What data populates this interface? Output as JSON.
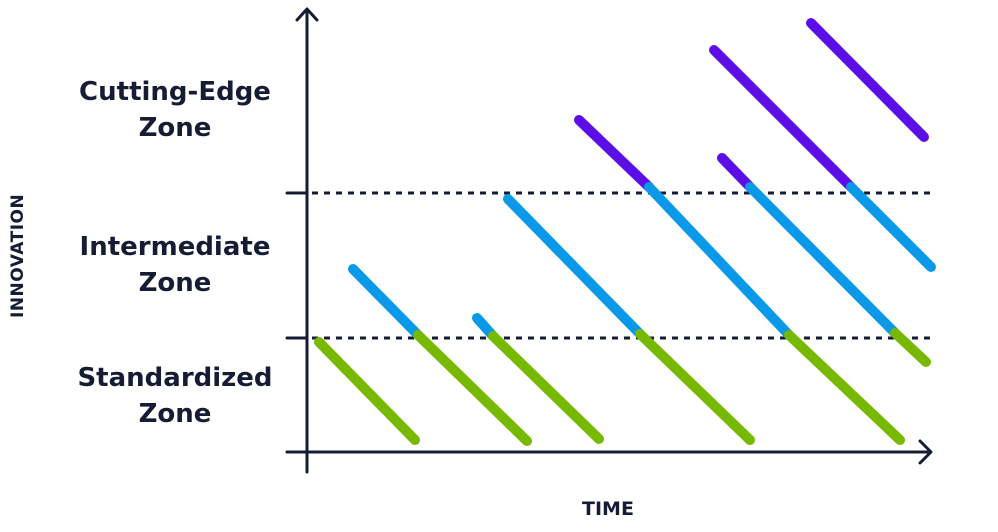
{
  "zones": [
    {
      "line1": "Cutting-Edge",
      "line2": "Zone"
    },
    {
      "line1": "Intermediate",
      "line2": "Zone"
    },
    {
      "line1": "Standardized",
      "line2": "Zone"
    }
  ],
  "axes": {
    "y_label": "INNOVATION",
    "x_label": "TIME"
  },
  "colors": {
    "standardized": "#76b900",
    "intermediate": "#0a99e8",
    "cutting_edge": "#5b0fe6",
    "axis": "#161c33"
  }
}
